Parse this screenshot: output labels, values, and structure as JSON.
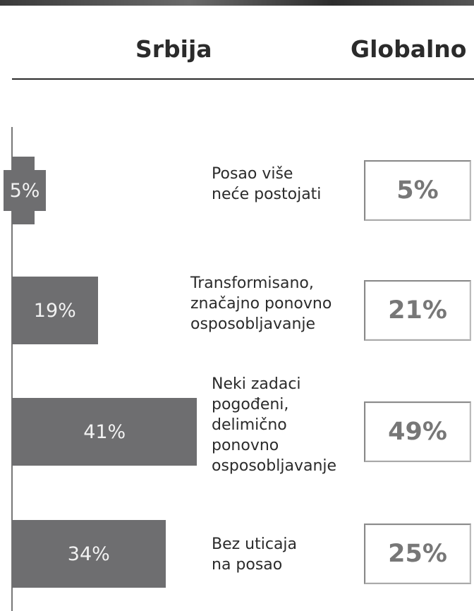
{
  "chart_data": {
    "type": "bar",
    "orientation": "horizontal",
    "categories": [
      "Posao više\nneće postojati",
      "Transformisano,\nznačajno ponovno\nosposobljavanje",
      "Neki zadaci\npogođeni,\ndelimično\nponovno\nosposobljavanje",
      "Bez uticaja\nna posao"
    ],
    "xlim": [
      0,
      100
    ],
    "series": [
      {
        "name": "Srbija",
        "color": "#6e6e70",
        "values": [
          5,
          19,
          41,
          34
        ],
        "value_labels": [
          "5%",
          "19%",
          "41%",
          "34%"
        ]
      },
      {
        "name": "Globalno",
        "color": "#777777",
        "values": [
          5,
          21,
          49,
          25
        ],
        "value_labels": [
          "5%",
          "21%",
          "49%",
          "25%"
        ]
      }
    ]
  }
}
